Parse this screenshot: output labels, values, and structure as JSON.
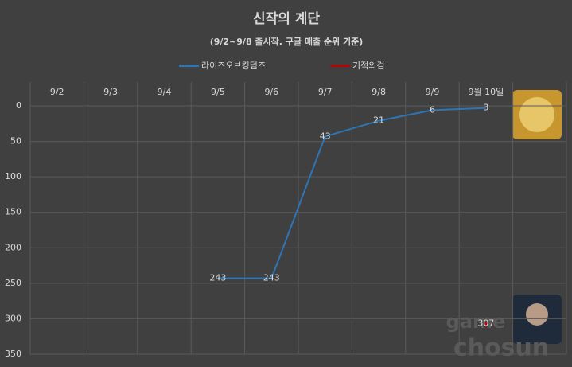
{
  "chart_data": {
    "type": "line",
    "title": "신작의 계단",
    "subtitle": "(9/2~9/8 출시작. 구글 매출 순위 기준)",
    "categories": [
      "9/2",
      "9/3",
      "9/4",
      "9/5",
      "9/6",
      "9/7",
      "9/8",
      "9/9",
      "9월 10일"
    ],
    "series": [
      {
        "name": "라이즈오브킹덤즈",
        "color": "#2e75b6",
        "values": [
          null,
          null,
          null,
          243,
          243,
          43,
          21,
          6,
          3
        ]
      },
      {
        "name": "기적의검",
        "color": "#c00000",
        "values": [
          null,
          null,
          null,
          null,
          null,
          null,
          null,
          null,
          307
        ]
      }
    ],
    "ylim": [
      350,
      0
    ],
    "yticks": [
      0,
      50,
      100,
      150,
      200,
      250,
      300,
      350
    ],
    "grid": true,
    "legend": "top",
    "watermark": [
      "game",
      "chosun"
    ]
  }
}
